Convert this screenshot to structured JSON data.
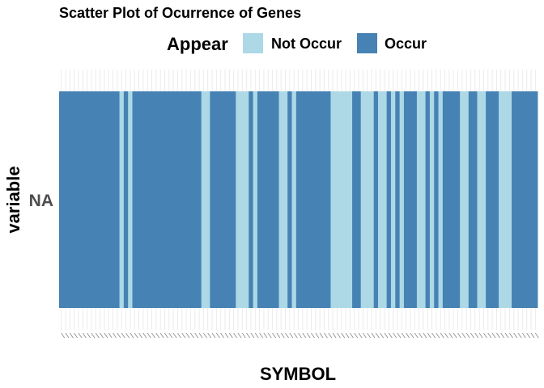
{
  "chart_data": {
    "type": "heatmap",
    "title": "Scatter Plot of Ocurrence of Genes",
    "xlabel": "SYMBOL",
    "ylabel": "variable",
    "y_categories": [
      "NA"
    ],
    "legend": {
      "title": "Appear",
      "position": "top",
      "entries": [
        {
          "label": "Not Occur",
          "color": "#add8e6"
        },
        {
          "label": "Occur",
          "color": "#4682b4"
        }
      ]
    },
    "grid": true,
    "x_count": 111,
    "values": [
      1,
      1,
      1,
      1,
      1,
      1,
      1,
      1,
      1,
      1,
      1,
      1,
      1,
      1,
      0,
      1,
      0,
      1,
      1,
      1,
      1,
      1,
      1,
      1,
      1,
      1,
      1,
      1,
      1,
      1,
      1,
      1,
      1,
      0,
      0,
      1,
      1,
      1,
      1,
      1,
      1,
      0,
      0,
      0,
      1,
      0,
      1,
      1,
      1,
      1,
      1,
      0,
      0,
      1,
      0,
      1,
      1,
      1,
      1,
      1,
      1,
      1,
      1,
      0,
      0,
      0,
      0,
      0,
      1,
      1,
      0,
      0,
      0,
      1,
      0,
      0,
      1,
      0,
      1,
      0,
      1,
      1,
      1,
      0,
      0,
      1,
      0,
      1,
      0,
      1,
      1,
      1,
      1,
      0,
      0,
      1,
      1,
      0,
      0,
      1,
      1,
      1,
      0,
      0,
      0,
      1,
      1,
      1,
      1,
      1,
      1
    ]
  }
}
